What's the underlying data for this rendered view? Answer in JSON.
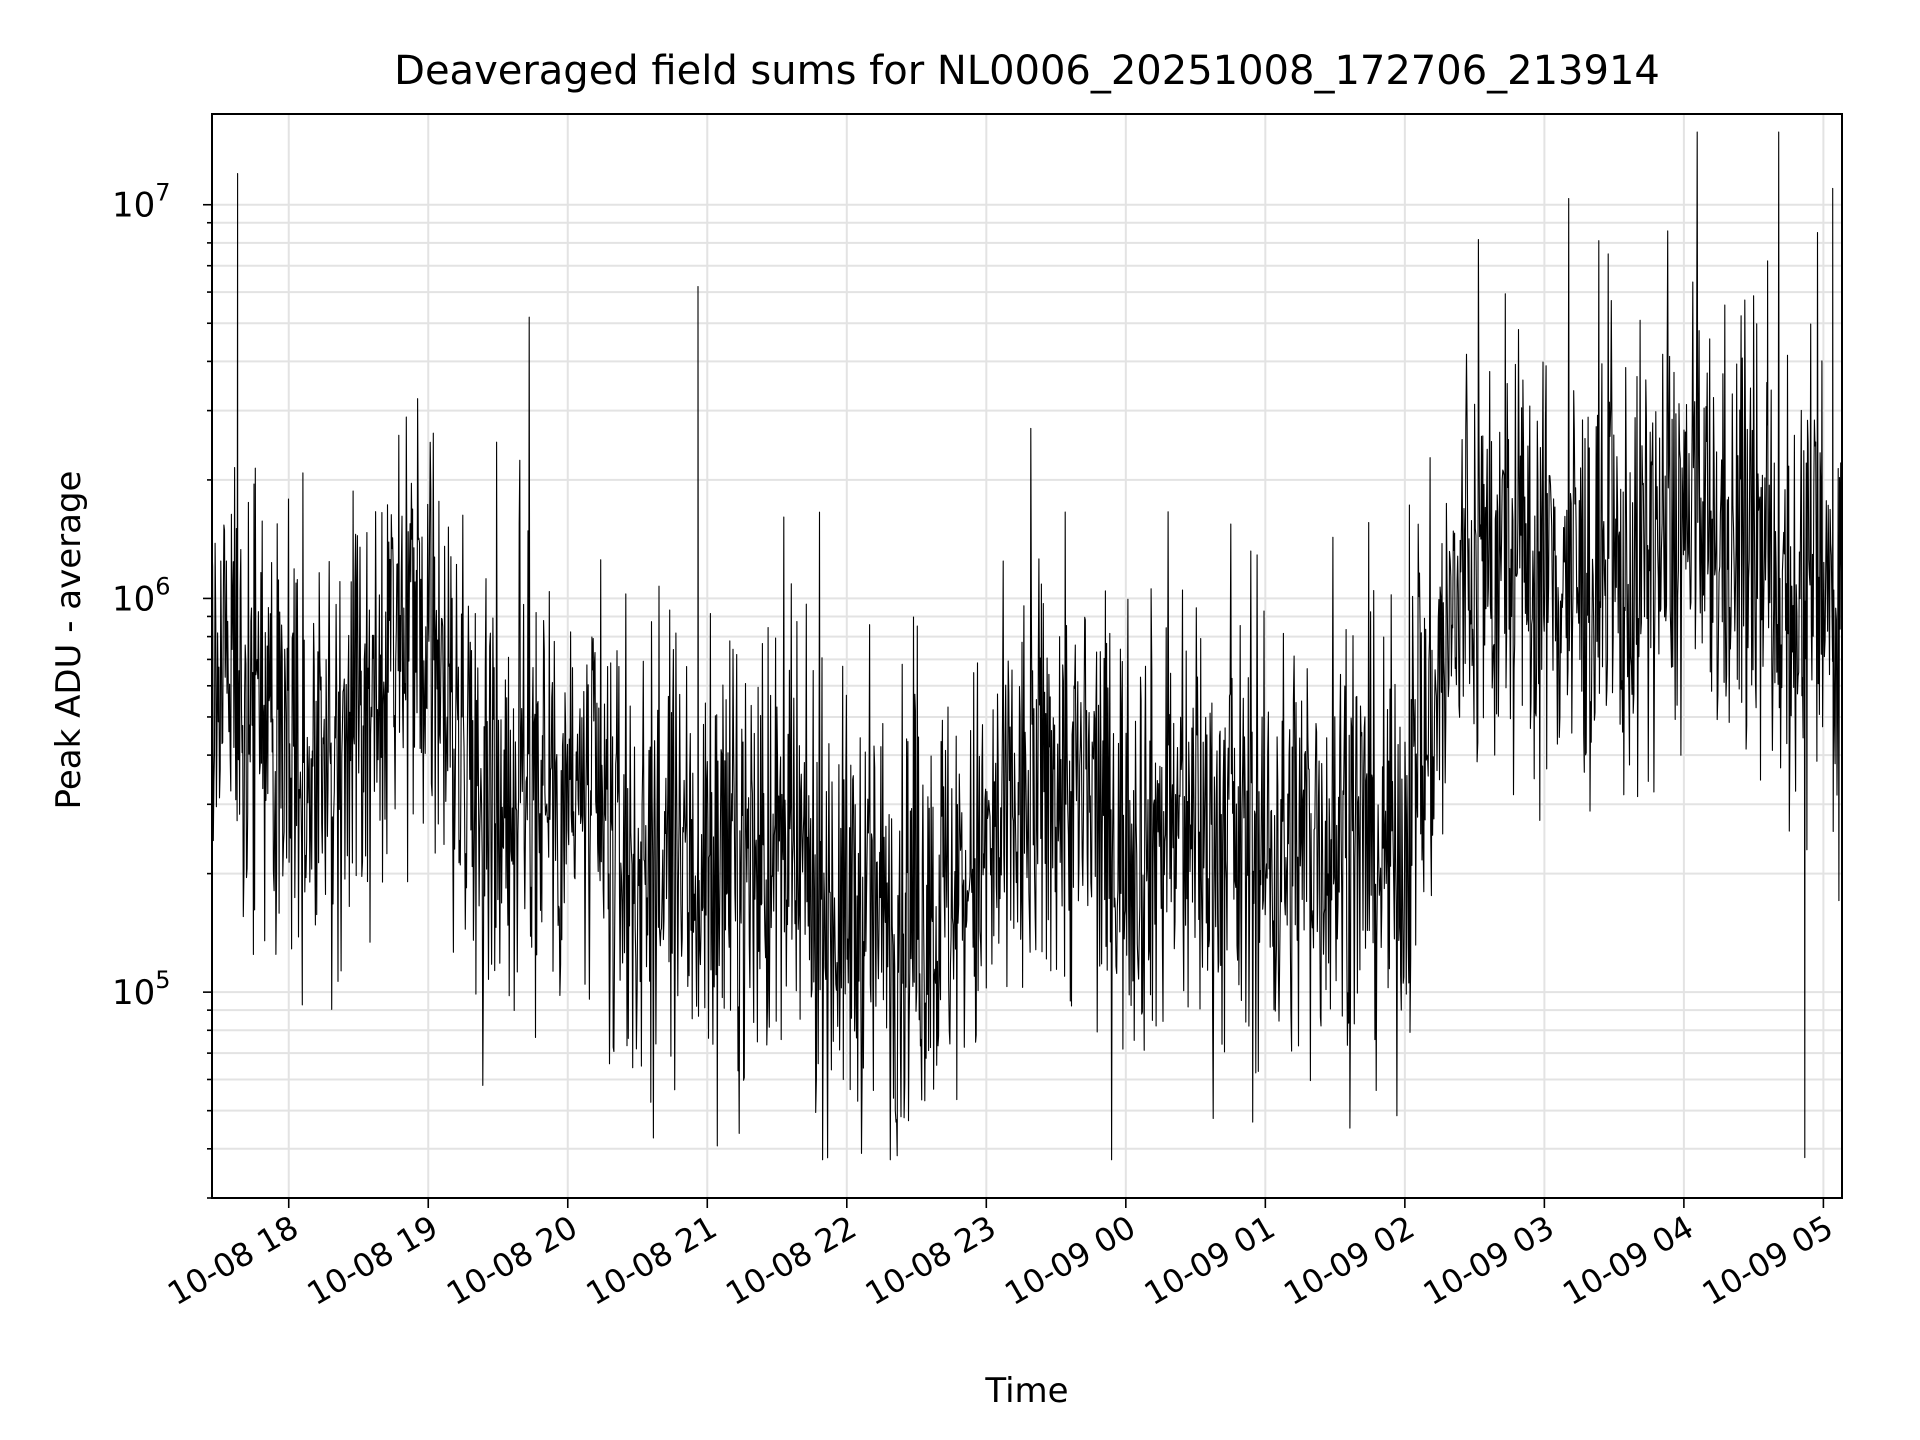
{
  "chart_data": {
    "type": "line",
    "title": "Deaveraged field sums for NL0006_20251008_172706_213914",
    "xlabel": "Time",
    "ylabel": "Peak ADU - average",
    "yscale": "log",
    "ylim": [
      30000,
      17000000
    ],
    "xlim": [
      "2025-10-08 17:27",
      "2025-10-09 05:08"
    ],
    "grid": true,
    "legend": "none",
    "x_ticks": [
      {
        "time": "2025-10-08 18:00",
        "label": "10-08 18"
      },
      {
        "time": "2025-10-08 19:00",
        "label": "10-08 19"
      },
      {
        "time": "2025-10-08 20:00",
        "label": "10-08 20"
      },
      {
        "time": "2025-10-08 21:00",
        "label": "10-08 21"
      },
      {
        "time": "2025-10-08 22:00",
        "label": "10-08 22"
      },
      {
        "time": "2025-10-08 23:00",
        "label": "10-08 23"
      },
      {
        "time": "2025-10-09 00:00",
        "label": "10-09 00"
      },
      {
        "time": "2025-10-09 01:00",
        "label": "10-09 01"
      },
      {
        "time": "2025-10-09 02:00",
        "label": "10-09 02"
      },
      {
        "time": "2025-10-09 03:00",
        "label": "10-09 03"
      },
      {
        "time": "2025-10-09 04:00",
        "label": "10-09 04"
      },
      {
        "time": "2025-10-09 05:00",
        "label": "10-09 05"
      }
    ],
    "y_ticks": [
      {
        "value": 100000,
        "base": "10",
        "exp": "5"
      },
      {
        "value": 1000000,
        "base": "10",
        "exp": "6"
      },
      {
        "value": 10000000,
        "base": "10",
        "exp": "7"
      }
    ],
    "series": [
      {
        "name": "Peak ADU - average",
        "color": "#000000",
        "points_hours_since_start": [
          0.0,
          0.4,
          0.9,
          1.5,
          2.0,
          2.5,
          3.0,
          3.5,
          4.0,
          4.5,
          5.0,
          5.5,
          6.0,
          6.5,
          7.0,
          7.5,
          8.0,
          8.5,
          9.0,
          9.5,
          10.0,
          10.5,
          11.0,
          11.5
        ],
        "typical_values": [
          800000,
          450000,
          350000,
          800000,
          300000,
          350000,
          200000,
          200000,
          220000,
          160000,
          150000,
          200000,
          350000,
          250000,
          260000,
          220000,
          250000,
          220000,
          1200000,
          1200000,
          1000000,
          1500000,
          1300000,
          900000
        ],
        "notable_spikes": [
          {
            "time": "2025-10-08 17:38",
            "value": 12000000
          },
          {
            "time": "2025-10-08 20:56",
            "value": 6200000
          },
          {
            "time": "2025-10-09 04:36",
            "value": 7200000
          },
          {
            "time": "2025-10-09 05:04",
            "value": 11000000
          },
          {
            "time": "2025-10-09 04:52",
            "value": 38000
          }
        ]
      }
    ]
  }
}
